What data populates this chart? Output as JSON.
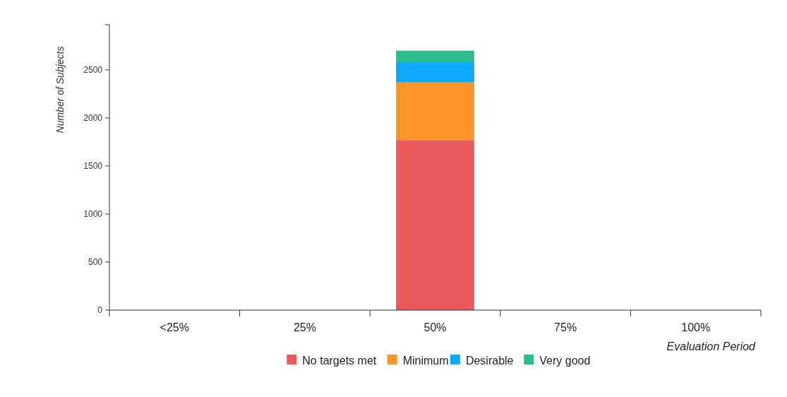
{
  "chart_data": {
    "type": "bar",
    "stacked": true,
    "xlabel": "Evaluation Period",
    "ylabel": "Number of Subjects",
    "categories": [
      "<25%",
      "25%",
      "50%",
      "75%",
      "100%"
    ],
    "series": [
      {
        "name": "No targets met",
        "color": "#eb5a5a",
        "values": [
          0,
          0,
          1770,
          0,
          0
        ]
      },
      {
        "name": "Minimum",
        "color": "#fd9426",
        "values": [
          0,
          0,
          600,
          0,
          0
        ]
      },
      {
        "name": "Desirable",
        "color": "#0ca8fc",
        "values": [
          0,
          0,
          210,
          0,
          0
        ]
      },
      {
        "name": "Very good",
        "color": "#2bbd8a",
        "values": [
          0,
          0,
          120,
          0,
          0
        ]
      }
    ],
    "ylim": [
      0,
      2970
    ],
    "yticks": [
      0,
      500,
      1000,
      1500,
      2000,
      2500
    ],
    "grid": false,
    "legend": "bottom"
  }
}
